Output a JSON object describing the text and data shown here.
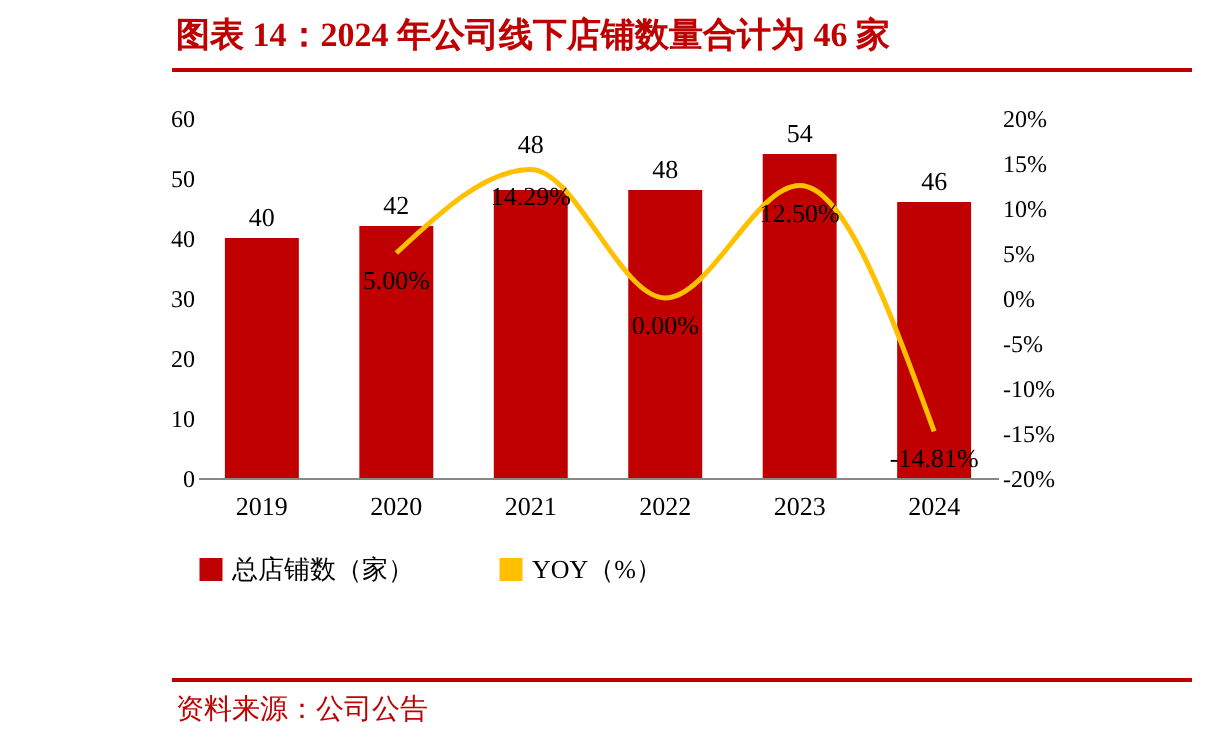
{
  "chart_data": {
    "type": "bar",
    "title": "图表 14：2024 年公司线下店铺数量合计为 46 家",
    "categories": [
      "2019",
      "2020",
      "2021",
      "2022",
      "2023",
      "2024"
    ],
    "series": [
      {
        "name": "总店铺数（家）",
        "color": "#c00000",
        "values": [
          40,
          42,
          48,
          48,
          54,
          46
        ],
        "value_labels": [
          "40",
          "42",
          "48",
          "48",
          "54",
          "46"
        ]
      },
      {
        "name": "YOY（%）",
        "type": "line",
        "axis": "y2",
        "color": "#ffc000",
        "values": [
          null,
          5.0,
          14.29,
          0.0,
          12.5,
          -14.81
        ],
        "value_labels": [
          null,
          "5.00%",
          "14.29%",
          "0.00%",
          "12.50%",
          "-14.81%"
        ]
      }
    ],
    "ylim": [
      0,
      60
    ],
    "yticks": [
      0,
      10,
      20,
      30,
      40,
      50,
      60
    ],
    "y2lim": [
      -20,
      20
    ],
    "y2ticks": [
      {
        "value": -20,
        "label": "-20%"
      },
      {
        "value": -15,
        "label": "-15%"
      },
      {
        "value": -10,
        "label": "-10%"
      },
      {
        "value": -5,
        "label": "-5%"
      },
      {
        "value": 0,
        "label": "0%"
      },
      {
        "value": 5,
        "label": "5%"
      },
      {
        "value": 10,
        "label": "10%"
      },
      {
        "value": 15,
        "label": "15%"
      },
      {
        "value": 20,
        "label": "20%"
      }
    ],
    "grid": false,
    "legend": "bottom",
    "marker": "none",
    "annotations": [
      "资料来源：公司公告"
    ]
  }
}
